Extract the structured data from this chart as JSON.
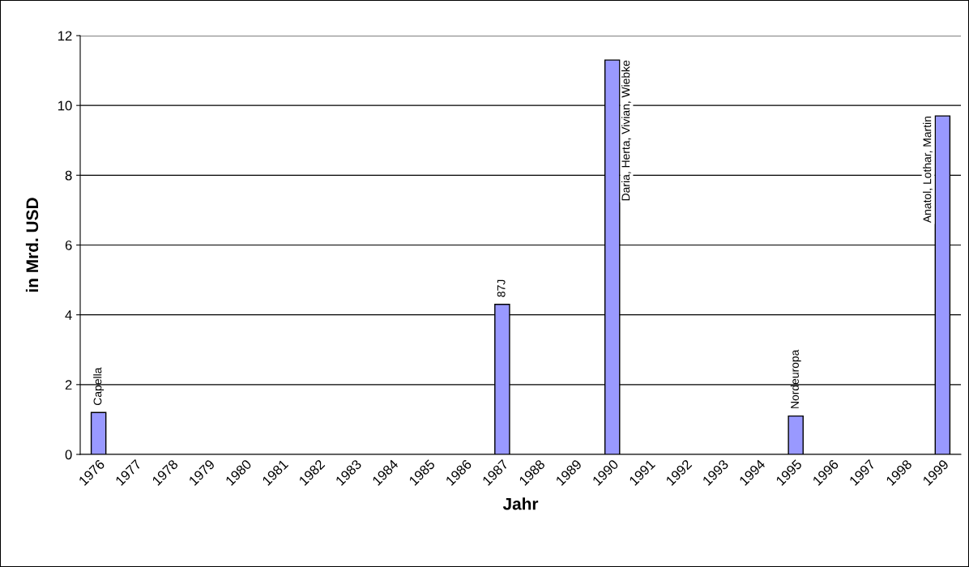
{
  "chart_data": {
    "type": "bar",
    "xlabel": "Jahr",
    "ylabel": "in Mrd. USD",
    "categories": [
      "1976",
      "1977",
      "1978",
      "1979",
      "1980",
      "1981",
      "1982",
      "1983",
      "1984",
      "1985",
      "1986",
      "1987",
      "1988",
      "1989",
      "1990",
      "1991",
      "1992",
      "1993",
      "1994",
      "1995",
      "1996",
      "1997",
      "1998",
      "1999"
    ],
    "values": [
      1.2,
      null,
      null,
      null,
      null,
      null,
      null,
      null,
      null,
      null,
      null,
      4.3,
      null,
      null,
      11.3,
      null,
      null,
      null,
      null,
      1.1,
      null,
      null,
      null,
      9.7
    ],
    "color": "#9999ff",
    "ylim": [
      0,
      12
    ],
    "yticks": [
      0,
      2,
      4,
      6,
      8,
      10,
      12
    ],
    "grid": "y",
    "annotations": [
      {
        "text": "Capella",
        "x": "1976",
        "y": 1.2
      },
      {
        "text": "87J",
        "x": "1987",
        "y": 4.3
      },
      {
        "text": "Daria, Herta, Vivian, Wiebke",
        "x": "1990",
        "y": 11.3
      },
      {
        "text": "Nordeuropa",
        "x": "1995",
        "y": 1.1
      },
      {
        "text": "Anatol, Lothar, Martin",
        "x": "1999",
        "y": 9.7
      }
    ]
  }
}
